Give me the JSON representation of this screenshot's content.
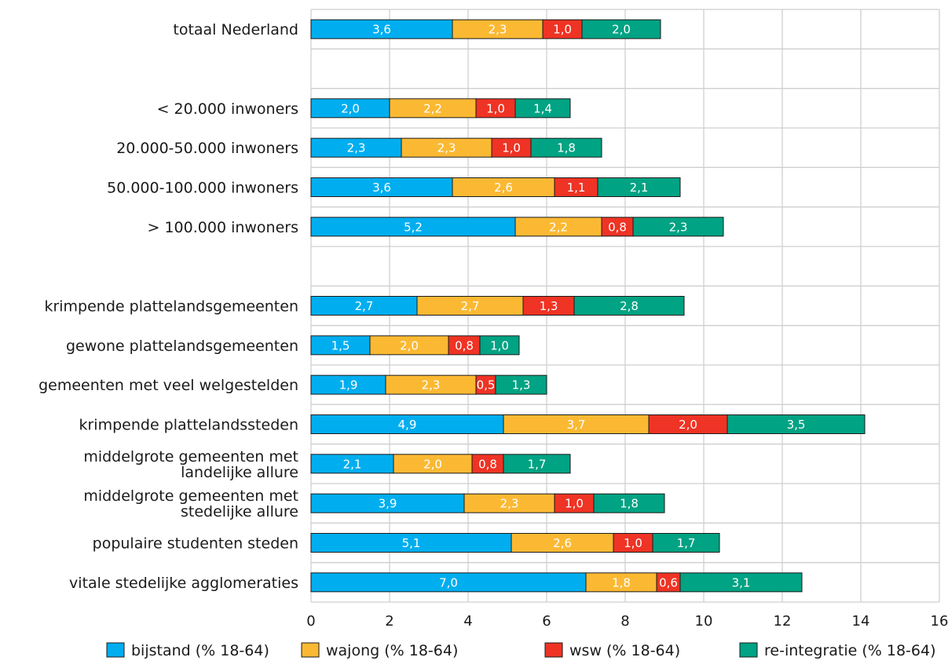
{
  "chart_data": {
    "type": "bar",
    "orientation": "horizontal",
    "stacked": true,
    "title": "",
    "xlabel": "",
    "ylabel": "",
    "xlim": [
      0,
      16
    ],
    "x_ticks": [
      0,
      2,
      4,
      6,
      8,
      10,
      12,
      14,
      16
    ],
    "grid": true,
    "legend_position": "bottom",
    "categories": [
      "totaal Nederland",
      "",
      "< 20.000 inwoners",
      "20.000-50.000 inwoners",
      "50.000-100.000 inwoners",
      "> 100.000 inwoners",
      "",
      "krimpende plattelandsgemeenten",
      "gewone plattelandsgemeenten",
      "gemeenten met veel welgestelden",
      "krimpende plattelandssteden",
      "middelgrote gemeenten met landelijke allure",
      "middelgrote gemeenten met stedelijke allure",
      "populaire studenten steden",
      "vitale stedelijke agglomeraties"
    ],
    "category_lines": [
      [
        "totaal Nederland"
      ],
      [],
      [
        "< 20.000 inwoners"
      ],
      [
        "20.000-50.000 inwoners"
      ],
      [
        "50.000-100.000 inwoners"
      ],
      [
        "> 100.000 inwoners"
      ],
      [],
      [
        "krimpende plattelandsgemeenten"
      ],
      [
        "gewone plattelandsgemeenten"
      ],
      [
        "gemeenten met veel welgestelden"
      ],
      [
        "krimpende plattelandssteden"
      ],
      [
        "middelgrote gemeenten met",
        "landelijke allure"
      ],
      [
        "middelgrote gemeenten met",
        "stedelijke allure"
      ],
      [
        "populaire studenten steden"
      ],
      [
        "vitale stedelijke agglomeraties"
      ]
    ],
    "series": [
      {
        "name": "bijstand (% 18-64)",
        "color": "#00aeef",
        "values": [
          3.6,
          null,
          2.0,
          2.3,
          3.6,
          5.2,
          null,
          2.7,
          1.5,
          1.9,
          4.9,
          2.1,
          3.9,
          5.1,
          7.0
        ],
        "labels": [
          "3,6",
          "",
          "2,0",
          "2,3",
          "3,6",
          "5,2",
          "",
          "2,7",
          "1,5",
          "1,9",
          "4,9",
          "2,1",
          "3,9",
          "5,1",
          "7,0"
        ]
      },
      {
        "name": "wajong (% 18-64)",
        "color": "#fbb933",
        "values": [
          2.3,
          null,
          2.2,
          2.3,
          2.6,
          2.2,
          null,
          2.7,
          2.0,
          2.3,
          3.7,
          2.0,
          2.3,
          2.6,
          1.8
        ],
        "labels": [
          "2,3",
          "",
          "2,2",
          "2,3",
          "2,6",
          "2,2",
          "",
          "2,7",
          "2,0",
          "2,3",
          "3,7",
          "2,0",
          "2,3",
          "2,6",
          "1,8"
        ]
      },
      {
        "name": "wsw (% 18-64)",
        "color": "#ef3324",
        "values": [
          1.0,
          null,
          1.0,
          1.0,
          1.1,
          0.8,
          null,
          1.3,
          0.8,
          0.5,
          2.0,
          0.8,
          1.0,
          1.0,
          0.6
        ],
        "labels": [
          "1,0",
          "",
          "1,0",
          "1,0",
          "1,1",
          "0,8",
          "",
          "1,3",
          "0,8",
          "0,5",
          "2,0",
          "0,8",
          "1,0",
          "1,0",
          "0,6"
        ]
      },
      {
        "name": "re-integratie (% 18-64)",
        "color": "#00a383",
        "values": [
          2.0,
          null,
          1.4,
          1.8,
          2.1,
          2.3,
          null,
          2.8,
          1.0,
          1.3,
          3.5,
          1.7,
          1.8,
          1.7,
          3.1
        ],
        "labels": [
          "2,0",
          "",
          "1,4",
          "1,8",
          "2,1",
          "2,3",
          "",
          "2,8",
          "1,0",
          "1,3",
          "3,5",
          "1,7",
          "1,8",
          "1,7",
          "3,1"
        ]
      }
    ]
  }
}
